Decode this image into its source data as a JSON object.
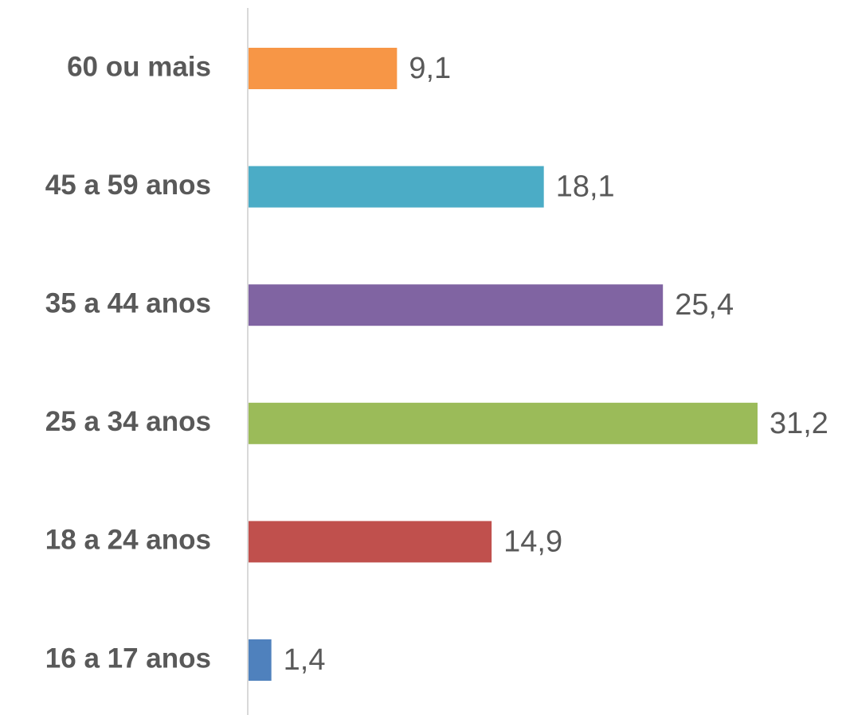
{
  "chart_data": {
    "type": "bar",
    "orientation": "horizontal",
    "categories": [
      "60 ou mais",
      "45 a 59 anos",
      "35 a 44 anos",
      "25 a 34 anos",
      "18 a 24 anos",
      "16 a 17 anos"
    ],
    "values": [
      9.1,
      18.1,
      25.4,
      31.2,
      14.9,
      1.4
    ],
    "value_labels": [
      "9,1",
      "18,1",
      "25,4",
      "31,2",
      "14,9",
      "1,4"
    ],
    "colors": [
      "#f79646",
      "#4bacc6",
      "#8064a2",
      "#9bbb59",
      "#c0504d",
      "#4f81bd"
    ]
  }
}
